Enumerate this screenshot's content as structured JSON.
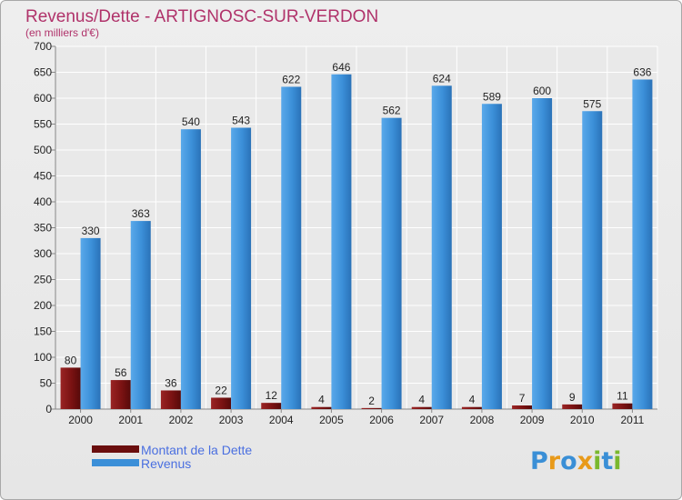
{
  "chart_data": {
    "type": "bar",
    "title": "Revenus/Dette - ARTIGNOSC-SUR-VERDON",
    "subtitle": "(en milliers d'€)",
    "categories": [
      "2000",
      "2001",
      "2002",
      "2003",
      "2004",
      "2005",
      "2006",
      "2007",
      "2008",
      "2009",
      "2010",
      "2011"
    ],
    "series": [
      {
        "name": "Montant de la Dette",
        "color": "#7a1212",
        "values": [
          80,
          56,
          36,
          22,
          12,
          4,
          2,
          4,
          4,
          7,
          9,
          11
        ]
      },
      {
        "name": "Revenus",
        "color": "#3b8fd8",
        "values": [
          330,
          363,
          540,
          543,
          622,
          646,
          562,
          624,
          589,
          600,
          575,
          636
        ]
      }
    ],
    "ylim": [
      0,
      700
    ],
    "yticks": [
      0,
      50,
      100,
      150,
      200,
      250,
      300,
      350,
      400,
      450,
      500,
      550,
      600,
      650,
      700
    ],
    "grid": true,
    "legend_position": "bottom-left"
  },
  "logo": {
    "text": "Proxiti",
    "letters": [
      {
        "ch": "P",
        "color": "#3a8fd6"
      },
      {
        "ch": "r",
        "color": "#e89a1a"
      },
      {
        "ch": "o",
        "color": "#3a8fd6"
      },
      {
        "ch": "x",
        "color": "#e89a1a"
      },
      {
        "ch": "i",
        "color": "#7ab82e"
      },
      {
        "ch": "t",
        "color": "#3a8fd6"
      },
      {
        "ch": "i",
        "color": "#7ab82e"
      }
    ]
  }
}
